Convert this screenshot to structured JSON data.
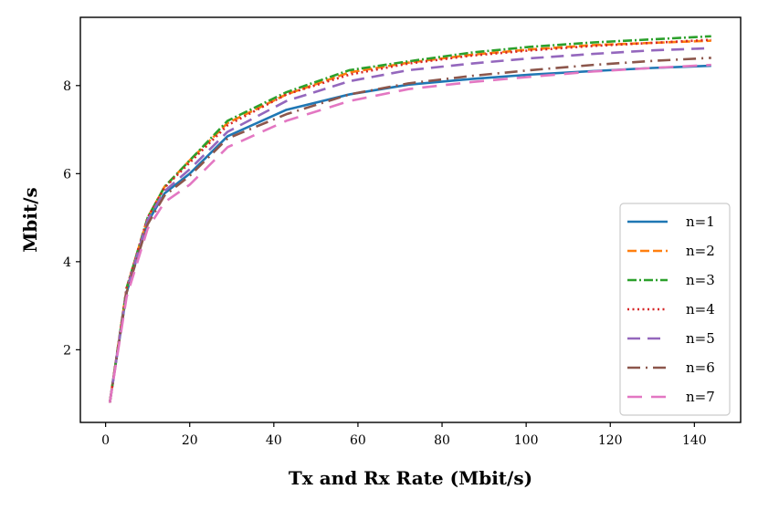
{
  "chart_data": {
    "type": "line",
    "title": "",
    "xlabel": "Tx and Rx Rate (Mbit/s)",
    "ylabel": "Mbit/s",
    "xlim": [
      -6,
      151
    ],
    "ylim": [
      0.35,
      9.55
    ],
    "xticks": [
      0,
      20,
      40,
      60,
      80,
      100,
      120,
      140
    ],
    "yticks": [
      2,
      4,
      6,
      8
    ],
    "grid": false,
    "legend_position": "lower-right",
    "x": [
      1,
      5,
      10,
      14,
      20,
      29,
      43,
      58,
      72,
      87,
      101,
      116,
      130,
      144
    ],
    "series": [
      {
        "name": "n=1",
        "color": "#1f77b4",
        "dash": "solid",
        "values": [
          0.8,
          3.3,
          4.9,
          5.55,
          6.0,
          6.85,
          7.45,
          7.8,
          8.02,
          8.15,
          8.25,
          8.33,
          8.4,
          8.45
        ]
      },
      {
        "name": "n=2",
        "color": "#ff7f0e",
        "dash": "dashed",
        "values": [
          0.8,
          3.4,
          5.0,
          5.7,
          6.3,
          7.15,
          7.8,
          8.3,
          8.52,
          8.7,
          8.82,
          8.92,
          8.97,
          9.02
        ]
      },
      {
        "name": "n=3",
        "color": "#2ca02c",
        "dash": "dashdot",
        "values": [
          0.8,
          3.4,
          5.0,
          5.7,
          6.3,
          7.2,
          7.85,
          8.35,
          8.55,
          8.75,
          8.88,
          8.98,
          9.05,
          9.12
        ]
      },
      {
        "name": "n=4",
        "color": "#d62728",
        "dash": "dotted",
        "values": [
          0.8,
          3.4,
          5.0,
          5.68,
          6.25,
          7.1,
          7.8,
          8.25,
          8.5,
          8.68,
          8.8,
          8.9,
          8.97,
          9.04
        ]
      },
      {
        "name": "n=5",
        "color": "#9467bd",
        "dash": "longdash",
        "values": [
          0.8,
          3.35,
          4.95,
          5.6,
          6.1,
          6.95,
          7.65,
          8.1,
          8.35,
          8.5,
          8.62,
          8.72,
          8.8,
          8.85
        ]
      },
      {
        "name": "n=6",
        "color": "#8c564b",
        "dash": "longdashdot",
        "values": [
          0.8,
          3.3,
          4.85,
          5.5,
          5.95,
          6.8,
          7.35,
          7.8,
          8.05,
          8.22,
          8.35,
          8.47,
          8.56,
          8.63
        ]
      },
      {
        "name": "n=7",
        "color": "#e377c2",
        "dash": "longdashgap",
        "values": [
          0.8,
          3.2,
          4.75,
          5.35,
          5.75,
          6.6,
          7.2,
          7.65,
          7.92,
          8.08,
          8.2,
          8.32,
          8.4,
          8.47
        ]
      }
    ]
  }
}
